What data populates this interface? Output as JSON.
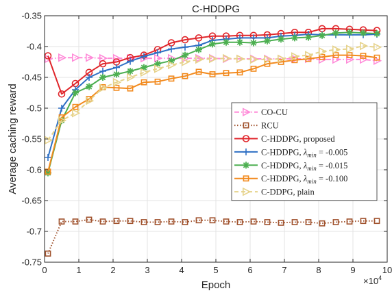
{
  "chart_data": {
    "type": "line",
    "title": "C-HDDPG",
    "xlabel": "Epoch",
    "ylabel": "Average caching reward",
    "x_exponent_label": "×10",
    "x_exponent_power": "4",
    "xlim": [
      0,
      10
    ],
    "ylim": [
      -0.75,
      -0.35
    ],
    "xticks": [
      0,
      1,
      2,
      3,
      4,
      5,
      6,
      7,
      8,
      9,
      10
    ],
    "xtick_labels": [
      "0",
      "1",
      "2",
      "3",
      "4",
      "5",
      "6",
      "7",
      "8",
      "9",
      "10"
    ],
    "yticks": [
      -0.75,
      -0.7,
      -0.65,
      -0.6,
      -0.55,
      -0.5,
      -0.45,
      -0.4,
      -0.35
    ],
    "ytick_labels": [
      "-0.75",
      "-0.7",
      "-0.65",
      "-0.6",
      "-0.55",
      "-0.5",
      "-0.45",
      "-0.4",
      "-0.35"
    ],
    "grid": true,
    "legend_position": "center-right",
    "series": [
      {
        "name": "CO-CU",
        "label_parts": [
          {
            "t": "CO-CU"
          }
        ],
        "color": "#ff8ad8",
        "line": "dashdot",
        "marker": "triangle-right",
        "x": [
          0.1,
          0.5,
          0.9,
          1.3,
          1.7,
          2.1,
          2.5,
          2.9,
          3.3,
          3.7,
          4.1,
          4.5,
          4.9,
          5.3,
          5.7,
          6.1,
          6.5,
          6.9,
          7.3,
          7.7,
          8.1,
          8.5,
          8.9,
          9.3,
          9.7
        ],
        "y": [
          -0.42,
          -0.418,
          -0.418,
          -0.418,
          -0.419,
          -0.419,
          -0.419,
          -0.419,
          -0.419,
          -0.419,
          -0.419,
          -0.419,
          -0.419,
          -0.42,
          -0.42,
          -0.42,
          -0.42,
          -0.42,
          -0.42,
          -0.42,
          -0.421,
          -0.421,
          -0.421,
          -0.421,
          -0.423
        ]
      },
      {
        "name": "RCU",
        "label_parts": [
          {
            "t": "RCU"
          }
        ],
        "color": "#a0522d",
        "line": "dotted",
        "marker": "square",
        "x": [
          0.1,
          0.5,
          0.9,
          1.3,
          1.7,
          2.1,
          2.5,
          2.9,
          3.3,
          3.7,
          4.1,
          4.5,
          4.9,
          5.3,
          5.7,
          6.1,
          6.5,
          6.9,
          7.3,
          7.7,
          8.1,
          8.5,
          8.9,
          9.3,
          9.7
        ],
        "y": [
          -0.736,
          -0.684,
          -0.684,
          -0.681,
          -0.684,
          -0.683,
          -0.683,
          -0.685,
          -0.685,
          -0.684,
          -0.685,
          -0.682,
          -0.682,
          -0.684,
          -0.685,
          -0.684,
          -0.685,
          -0.686,
          -0.685,
          -0.685,
          -0.687,
          -0.685,
          -0.684,
          -0.683,
          -0.683
        ]
      },
      {
        "name": "C-HDDPG, proposed",
        "label_parts": [
          {
            "t": "C-HDDPG, proposed"
          }
        ],
        "color": "#e0262b",
        "line": "solid",
        "marker": "circle",
        "x": [
          0.1,
          0.5,
          0.9,
          1.3,
          1.7,
          2.1,
          2.5,
          2.9,
          3.3,
          3.7,
          4.1,
          4.5,
          4.9,
          5.3,
          5.7,
          6.1,
          6.5,
          6.9,
          7.3,
          7.7,
          8.1,
          8.5,
          8.9,
          9.3,
          9.7
        ],
        "y": [
          -0.415,
          -0.477,
          -0.46,
          -0.442,
          -0.428,
          -0.425,
          -0.418,
          -0.414,
          -0.405,
          -0.394,
          -0.389,
          -0.386,
          -0.383,
          -0.383,
          -0.382,
          -0.382,
          -0.381,
          -0.379,
          -0.377,
          -0.377,
          -0.371,
          -0.371,
          -0.372,
          -0.373,
          -0.374
        ]
      },
      {
        "name": "C-HDDPG, λmin = -0.005",
        "label_parts": [
          {
            "t": "C-HDDPG, "
          },
          {
            "t": "λ",
            "i": true
          },
          {
            "t": "min",
            "i": true,
            "sub": true
          },
          {
            "t": " = -0.005"
          }
        ],
        "color": "#2e6fc4",
        "line": "solid",
        "marker": "plus",
        "x": [
          0.1,
          0.5,
          0.9,
          1.3,
          1.7,
          2.1,
          2.5,
          2.9,
          3.3,
          3.7,
          4.1,
          4.5,
          4.9,
          5.3,
          5.7,
          6.1,
          6.5,
          6.9,
          7.3,
          7.7,
          8.1,
          8.5,
          8.9,
          9.3,
          9.7
        ],
        "y": [
          -0.58,
          -0.5,
          -0.47,
          -0.45,
          -0.44,
          -0.434,
          -0.424,
          -0.416,
          -0.41,
          -0.404,
          -0.401,
          -0.398,
          -0.39,
          -0.388,
          -0.386,
          -0.386,
          -0.386,
          -0.383,
          -0.382,
          -0.38,
          -0.381,
          -0.381,
          -0.381,
          -0.381,
          -0.38
        ]
      },
      {
        "name": "C-HDDPG, λmin = -0.015",
        "label_parts": [
          {
            "t": "C-HDDPG, "
          },
          {
            "t": "λ",
            "i": true
          },
          {
            "t": "min",
            "i": true,
            "sub": true
          },
          {
            "t": " = -0.015"
          }
        ],
        "color": "#4caf50",
        "line": "solid",
        "marker": "star",
        "x": [
          0.1,
          0.5,
          0.9,
          1.3,
          1.7,
          2.1,
          2.5,
          2.9,
          3.3,
          3.7,
          4.1,
          4.5,
          4.9,
          5.3,
          5.7,
          6.1,
          6.5,
          6.9,
          7.3,
          7.7,
          8.1,
          8.5,
          8.9,
          9.3,
          9.7
        ],
        "y": [
          -0.605,
          -0.52,
          -0.475,
          -0.465,
          -0.45,
          -0.445,
          -0.44,
          -0.434,
          -0.428,
          -0.423,
          -0.414,
          -0.405,
          -0.396,
          -0.393,
          -0.393,
          -0.394,
          -0.391,
          -0.388,
          -0.386,
          -0.385,
          -0.382,
          -0.378,
          -0.377,
          -0.378,
          -0.379
        ]
      },
      {
        "name": "C-HDDPG, λmin = -0.100",
        "label_parts": [
          {
            "t": "C-HDDPG, "
          },
          {
            "t": "λ",
            "i": true
          },
          {
            "t": "min",
            "i": true,
            "sub": true
          },
          {
            "t": " = -0.100"
          }
        ],
        "color": "#f28a1e",
        "line": "solid",
        "marker": "square",
        "x": [
          0.1,
          0.5,
          0.9,
          1.3,
          1.7,
          2.1,
          2.5,
          2.9,
          3.3,
          3.7,
          4.1,
          4.5,
          4.9,
          5.3,
          5.7,
          6.1,
          6.5,
          6.9,
          7.3,
          7.7,
          8.1,
          8.5,
          8.9,
          9.3,
          9.7
        ],
        "y": [
          -0.603,
          -0.515,
          -0.498,
          -0.485,
          -0.466,
          -0.467,
          -0.468,
          -0.458,
          -0.457,
          -0.452,
          -0.448,
          -0.441,
          -0.445,
          -0.443,
          -0.442,
          -0.436,
          -0.428,
          -0.425,
          -0.422,
          -0.42,
          -0.417,
          -0.414,
          -0.414,
          -0.415,
          -0.418
        ]
      },
      {
        "name": "C-DDPG, plain",
        "label_parts": [
          {
            "t": "C-DDPG, plain"
          }
        ],
        "color": "#e6d28a",
        "line": "dashed",
        "marker": "triangle-right",
        "x": [
          0.1,
          0.5,
          0.9,
          1.3,
          1.7,
          2.1,
          2.5,
          2.9,
          3.3,
          3.7,
          4.1,
          4.5,
          4.9,
          5.3,
          5.7,
          6.1,
          6.5,
          6.9,
          7.3,
          7.7,
          8.1,
          8.5,
          8.9,
          9.3,
          9.7
        ],
        "y": [
          -0.552,
          -0.52,
          -0.508,
          -0.488,
          -0.467,
          -0.458,
          -0.45,
          -0.442,
          -0.436,
          -0.43,
          -0.425,
          -0.421,
          -0.42,
          -0.419,
          -0.42,
          -0.421,
          -0.421,
          -0.42,
          -0.416,
          -0.414,
          -0.408,
          -0.405,
          -0.404,
          -0.399,
          -0.401
        ]
      }
    ]
  }
}
